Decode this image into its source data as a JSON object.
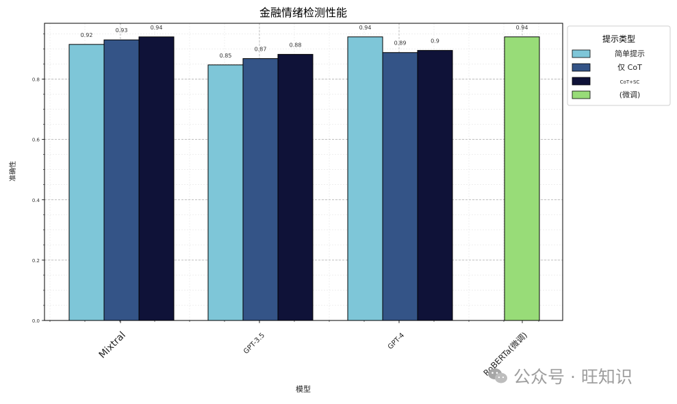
{
  "chart_data": {
    "type": "bar",
    "title": "金融情绪检测性能",
    "xlabel": "模型",
    "ylabel": "准确性",
    "ylim": [
      0,
      0.985
    ],
    "yticks": [
      0.0,
      0.2,
      0.4,
      0.6,
      0.8
    ],
    "ytick_labels": [
      "0.0",
      "0.2",
      "0.4",
      "0.6",
      "0.8"
    ],
    "grid": true,
    "legend_title": "提示类型",
    "legend_position": "upper-right-outside",
    "categories": [
      "Mixtral",
      "GPT-3.5",
      "GPT-4",
      "RoBERTa(微调)"
    ],
    "series": [
      {
        "name": "简单提示",
        "color": "#7ec6d8",
        "values": [
          0.915,
          0.847,
          0.94,
          null
        ],
        "labels": [
          "0.92",
          "0.85",
          "0.94",
          ""
        ]
      },
      {
        "name": "仅 CoT",
        "color": "#345487",
        "values": [
          0.93,
          0.868,
          0.888,
          null
        ],
        "labels": [
          "0.93",
          "0.87",
          "0.89",
          ""
        ]
      },
      {
        "name": "CoT+SC",
        "color": "#0f1238",
        "values": [
          0.94,
          0.882,
          0.895,
          null
        ],
        "labels": [
          "0.94",
          "0.88",
          "0.9",
          ""
        ]
      },
      {
        "name": "(微调)",
        "color": "#98dc78",
        "values": [
          null,
          null,
          null,
          0.94
        ],
        "labels": [
          "",
          "",
          "",
          "0.94"
        ]
      }
    ]
  },
  "watermark": {
    "icon": "wechat-icon",
    "text": "公众号 · 旺知识"
  }
}
